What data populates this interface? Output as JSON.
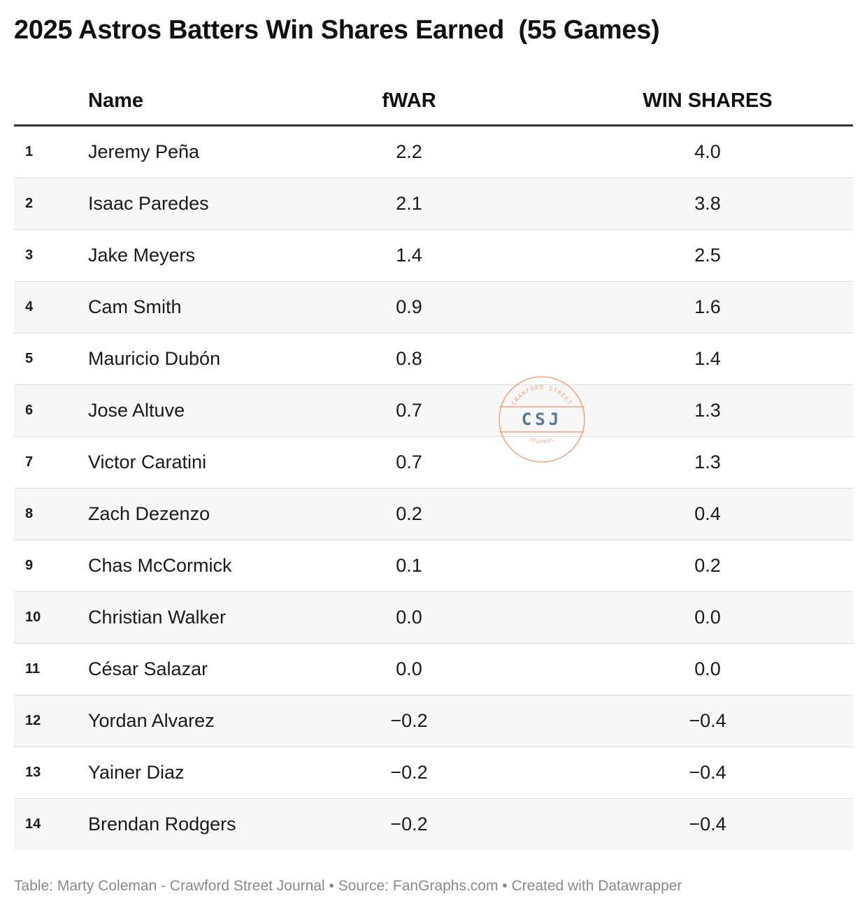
{
  "chart_data": {
    "type": "table",
    "title": "2025 Astros Batters Win Shares Earned  (55 Games)",
    "columns": [
      "Name",
      "fWAR",
      "WIN SHARES"
    ],
    "rows": [
      {
        "rank": "1",
        "name": "Jeremy Peña",
        "fwar": "2.2",
        "win_shares": "4.0"
      },
      {
        "rank": "2",
        "name": "Isaac Paredes",
        "fwar": "2.1",
        "win_shares": "3.8"
      },
      {
        "rank": "3",
        "name": "Jake Meyers",
        "fwar": "1.4",
        "win_shares": "2.5"
      },
      {
        "rank": "4",
        "name": "Cam Smith",
        "fwar": "0.9",
        "win_shares": "1.6"
      },
      {
        "rank": "5",
        "name": "Mauricio Dubón",
        "fwar": "0.8",
        "win_shares": "1.4"
      },
      {
        "rank": "6",
        "name": "Jose Altuve",
        "fwar": "0.7",
        "win_shares": "1.3"
      },
      {
        "rank": "7",
        "name": "Victor Caratini",
        "fwar": "0.7",
        "win_shares": "1.3"
      },
      {
        "rank": "8",
        "name": "Zach Dezenzo",
        "fwar": "0.2",
        "win_shares": "0.4"
      },
      {
        "rank": "9",
        "name": "Chas McCormick",
        "fwar": "0.1",
        "win_shares": "0.2"
      },
      {
        "rank": "10",
        "name": "Christian Walker",
        "fwar": "0.0",
        "win_shares": "0.0"
      },
      {
        "rank": "11",
        "name": "César Salazar",
        "fwar": "0.0",
        "win_shares": "0.0"
      },
      {
        "rank": "12",
        "name": "Yordan Alvarez",
        "fwar": "−0.2",
        "win_shares": "−0.4"
      },
      {
        "rank": "13",
        "name": "Yainer Diaz",
        "fwar": "−0.2",
        "win_shares": "−0.4"
      },
      {
        "rank": "14",
        "name": "Brendan Rodgers",
        "fwar": "−0.2",
        "win_shares": "−0.4"
      }
    ]
  },
  "watermark": {
    "top_text": "CRAWFORD STREET",
    "center_text": "CSJ",
    "bottom_text": "JOURNAL",
    "color": "#e8a27c",
    "center_color": "#4a6a8a"
  },
  "footer": "Table: Marty Coleman - Crawford Street Journal • Source: FanGraphs.com • Created with Datawrapper"
}
